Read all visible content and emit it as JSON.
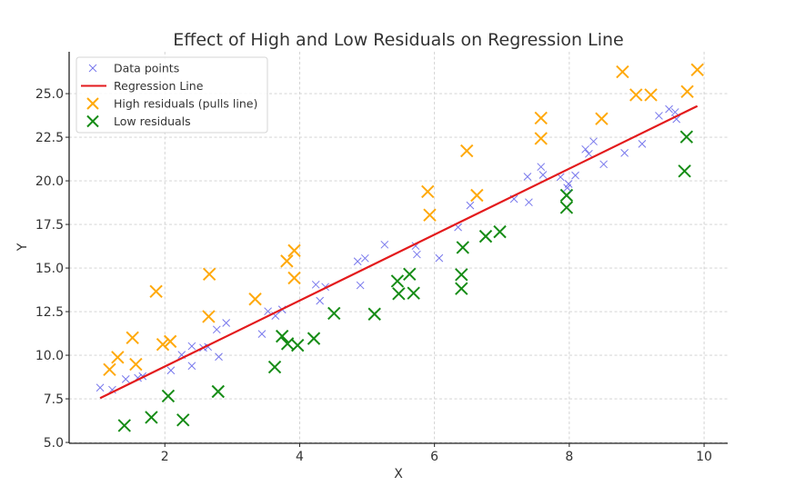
{
  "chart_data": {
    "type": "scatter",
    "title": "Effect of High and Low Residuals on Regression Line",
    "xlabel": "X",
    "ylabel": "Y",
    "xlim": [
      0.58,
      10.35
    ],
    "ylim": [
      4.95,
      27.4
    ],
    "xticks": [
      2,
      4,
      6,
      8,
      10
    ],
    "xtick_labels": [
      "2",
      "4",
      "6",
      "8",
      "10"
    ],
    "yticks": [
      5.0,
      7.5,
      10.0,
      12.5,
      15.0,
      17.5,
      20.0,
      22.5,
      25.0
    ],
    "ytick_labels": [
      "5.0",
      "7.5",
      "10.0",
      "12.5",
      "15.0",
      "17.5",
      "20.0",
      "22.5",
      "25.0"
    ],
    "grid": true,
    "legend_position": "top-left",
    "series": [
      {
        "name": "Data points",
        "kind": "scatter",
        "marker": "x-small",
        "color": "#4a4ae6",
        "points": [
          [
            1.04,
            8.14
          ],
          [
            1.22,
            8.02
          ],
          [
            1.42,
            8.63
          ],
          [
            1.6,
            8.7
          ],
          [
            1.67,
            8.8
          ],
          [
            2.09,
            9.13
          ],
          [
            2.25,
            10.02
          ],
          [
            2.4,
            9.39
          ],
          [
            2.4,
            10.52
          ],
          [
            2.57,
            10.43
          ],
          [
            2.64,
            10.48
          ],
          [
            2.8,
            9.91
          ],
          [
            2.77,
            11.47
          ],
          [
            2.91,
            11.85
          ],
          [
            3.44,
            11.22
          ],
          [
            3.53,
            12.52
          ],
          [
            3.64,
            12.26
          ],
          [
            3.74,
            12.62
          ],
          [
            4.24,
            14.05
          ],
          [
            4.38,
            13.92
          ],
          [
            4.3,
            13.12
          ],
          [
            4.86,
            15.38
          ],
          [
            4.97,
            15.56
          ],
          [
            4.9,
            14.01
          ],
          [
            5.26,
            16.34
          ],
          [
            5.72,
            16.27
          ],
          [
            5.74,
            15.78
          ],
          [
            6.07,
            15.57
          ],
          [
            6.35,
            17.34
          ],
          [
            6.53,
            18.59
          ],
          [
            7.18,
            18.96
          ],
          [
            7.4,
            18.77
          ],
          [
            7.38,
            20.24
          ],
          [
            7.58,
            20.8
          ],
          [
            7.61,
            20.34
          ],
          [
            7.87,
            20.22
          ],
          [
            7.97,
            19.6
          ],
          [
            7.99,
            19.82
          ],
          [
            8.09,
            20.31
          ],
          [
            8.24,
            21.81
          ],
          [
            8.29,
            21.55
          ],
          [
            8.36,
            22.26
          ],
          [
            8.51,
            20.95
          ],
          [
            8.82,
            21.6
          ],
          [
            9.08,
            22.12
          ],
          [
            9.33,
            23.73
          ],
          [
            9.48,
            24.11
          ],
          [
            9.57,
            23.94
          ],
          [
            9.59,
            23.54
          ]
        ]
      },
      {
        "name": "Regression Line",
        "kind": "line",
        "color": "#e31a1c",
        "x": [
          1.04,
          9.9
        ],
        "y": [
          7.54,
          24.29
        ],
        "slope": 1.89,
        "intercept": 5.57
      },
      {
        "name": "High residuals (pulls line)",
        "kind": "scatter",
        "marker": "x-large",
        "color": "#ffa500",
        "points": [
          [
            1.18,
            9.18
          ],
          [
            1.3,
            9.88
          ],
          [
            1.52,
            11.0
          ],
          [
            1.57,
            9.48
          ],
          [
            1.87,
            13.66
          ],
          [
            1.97,
            10.62
          ],
          [
            2.08,
            10.79
          ],
          [
            2.66,
            14.65
          ],
          [
            2.65,
            12.22
          ],
          [
            3.34,
            13.22
          ],
          [
            3.81,
            15.4
          ],
          [
            3.92,
            16.0
          ],
          [
            3.92,
            14.43
          ],
          [
            5.9,
            19.38
          ],
          [
            5.93,
            18.04
          ],
          [
            6.48,
            21.72
          ],
          [
            6.63,
            19.17
          ],
          [
            7.58,
            23.6
          ],
          [
            7.58,
            22.43
          ],
          [
            8.48,
            23.56
          ],
          [
            8.79,
            26.25
          ],
          [
            8.99,
            24.93
          ],
          [
            9.21,
            24.93
          ],
          [
            9.75,
            25.12
          ],
          [
            9.9,
            26.37
          ]
        ]
      },
      {
        "name": "Low residuals",
        "kind": "scatter",
        "marker": "x-large",
        "color": "#0a860a",
        "points": [
          [
            1.4,
            5.97
          ],
          [
            1.8,
            6.44
          ],
          [
            2.05,
            7.66
          ],
          [
            2.27,
            6.29
          ],
          [
            2.79,
            7.92
          ],
          [
            3.63,
            9.32
          ],
          [
            3.74,
            11.09
          ],
          [
            3.82,
            10.66
          ],
          [
            3.97,
            10.57
          ],
          [
            4.21,
            10.96
          ],
          [
            4.51,
            12.4
          ],
          [
            5.11,
            12.36
          ],
          [
            5.45,
            14.25
          ],
          [
            5.47,
            13.53
          ],
          [
            5.63,
            14.65
          ],
          [
            5.69,
            13.56
          ],
          [
            6.42,
            16.18
          ],
          [
            6.4,
            14.62
          ],
          [
            6.4,
            13.82
          ],
          [
            6.76,
            16.82
          ],
          [
            6.97,
            17.08
          ],
          [
            7.96,
            19.17
          ],
          [
            7.96,
            18.47
          ],
          [
            9.74,
            22.52
          ],
          [
            9.71,
            20.56
          ]
        ]
      }
    ]
  }
}
